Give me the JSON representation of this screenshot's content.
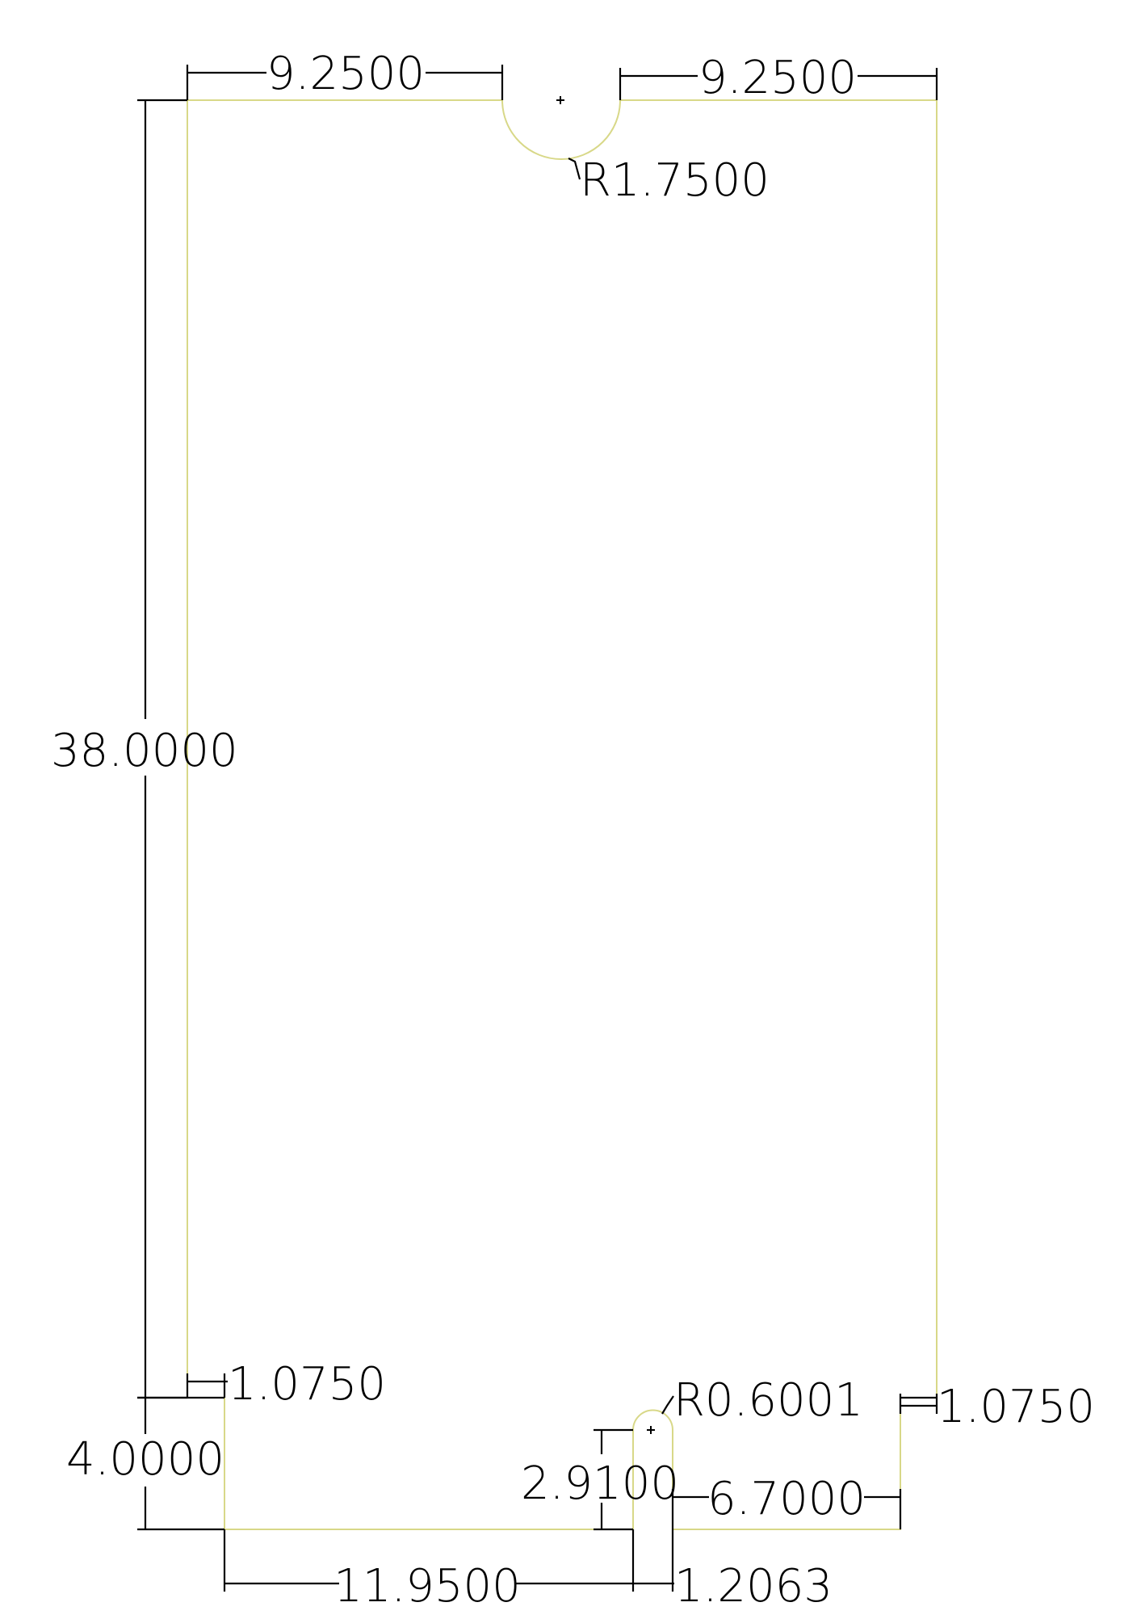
{
  "drawing": {
    "outline_color": "#d8d888",
    "dimension_color": "#000000",
    "dimensions": {
      "top_left_width": "9.2500",
      "top_right_width": "9.2500",
      "notch_radius": "R1.7500",
      "overall_height": "38.0000",
      "left_step": "1.0750",
      "right_step": "1.0750",
      "slot_radius": "R0.6001",
      "bottom_height": "4.0000",
      "slot_depth": "2.9100",
      "right_bottom_width": "6.7000",
      "left_bottom_width": "11.9500",
      "slot_width": "1.2063"
    }
  }
}
